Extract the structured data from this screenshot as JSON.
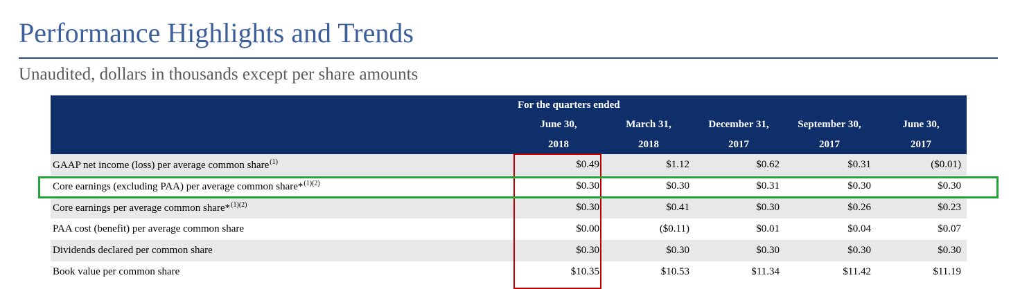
{
  "header": {
    "title": "Performance Highlights and Trends",
    "subtitle": "Unaudited, dollars in thousands except per share amounts"
  },
  "table": {
    "group_header": "For the quarters ended",
    "columns": [
      {
        "line1": "June 30,",
        "line2": "2018"
      },
      {
        "line1": "March 31,",
        "line2": "2018"
      },
      {
        "line1": "December 31,",
        "line2": "2017"
      },
      {
        "line1": "September 30,",
        "line2": "2017"
      },
      {
        "line1": "June 30,",
        "line2": "2017"
      }
    ],
    "rows": [
      {
        "label": "GAAP net income (loss) per average common share",
        "note": "(1)",
        "values": [
          "$0.49",
          "$1.12",
          "$0.62",
          "$0.31",
          "($0.01)"
        ]
      },
      {
        "label": "Core earnings  (excluding PAA) per average common share*",
        "note": "(1)(2)",
        "values": [
          "$0.30",
          "$0.30",
          "$0.31",
          "$0.30",
          "$0.30"
        ]
      },
      {
        "label": "Core earnings per average common share*",
        "note": "(1)(2)",
        "values": [
          "$0.30",
          "$0.41",
          "$0.30",
          "$0.26",
          "$0.23"
        ]
      },
      {
        "label": "PAA cost (benefit) per average common share",
        "note": "",
        "values": [
          "$0.00",
          "($0.11)",
          "$0.01",
          "$0.04",
          "$0.07"
        ]
      },
      {
        "label": "Dividends declared per common share",
        "note": "",
        "values": [
          "$0.30",
          "$0.30",
          "$0.30",
          "$0.30",
          "$0.30"
        ]
      },
      {
        "label": "Book value per common share",
        "note": "",
        "values": [
          "$10.35",
          "$10.53",
          "$11.34",
          "$11.42",
          "$11.19"
        ]
      }
    ]
  },
  "highlights": {
    "column_box_color": "#c00000",
    "row_box_color": "#22a63a"
  },
  "colors": {
    "title": "#3d5f99",
    "header_bg": "#0f2f6b",
    "stripe": "#e8e8e8"
  }
}
